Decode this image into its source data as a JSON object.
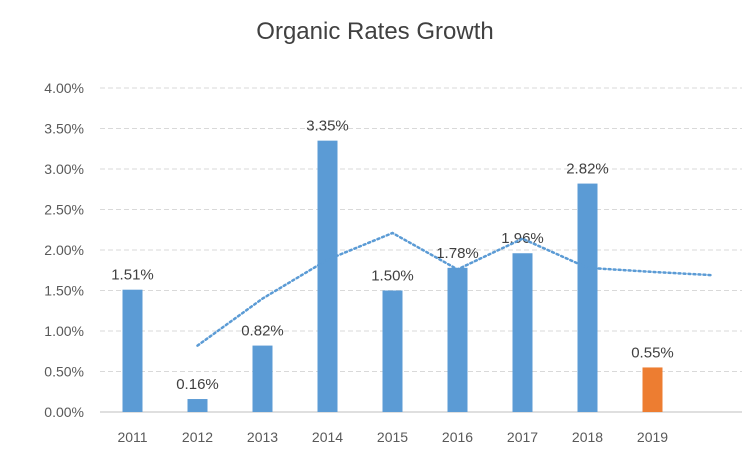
{
  "chart_data": {
    "type": "bar",
    "title": "Organic Rates Growth",
    "categories": [
      "2011",
      "2012",
      "2013",
      "2014",
      "2015",
      "2016",
      "2017",
      "2018",
      "2019"
    ],
    "values": [
      1.51,
      0.16,
      0.82,
      3.35,
      1.5,
      1.78,
      1.96,
      2.82,
      0.55
    ],
    "value_labels": [
      "1.51%",
      "0.16%",
      "0.82%",
      "3.35%",
      "1.50%",
      "1.78%",
      "1.96%",
      "2.82%",
      "0.55%"
    ],
    "bar_colors": [
      "#5b9bd5",
      "#5b9bd5",
      "#5b9bd5",
      "#5b9bd5",
      "#5b9bd5",
      "#5b9bd5",
      "#5b9bd5",
      "#5b9bd5",
      "#ed7d31"
    ],
    "trendline": {
      "style": "dotted",
      "color": "#5b9bd5",
      "x": [
        2,
        3,
        4,
        5,
        6,
        7,
        8,
        9,
        9.9
      ],
      "y": [
        0.82,
        1.4,
        1.88,
        2.21,
        1.76,
        2.14,
        1.78,
        1.73,
        1.69
      ]
    },
    "ylim": [
      0,
      4
    ],
    "yticks": [
      "0.00%",
      "0.50%",
      "1.00%",
      "1.50%",
      "2.00%",
      "2.50%",
      "3.00%",
      "3.50%",
      "4.00%"
    ],
    "grid": true,
    "legend": "none"
  }
}
